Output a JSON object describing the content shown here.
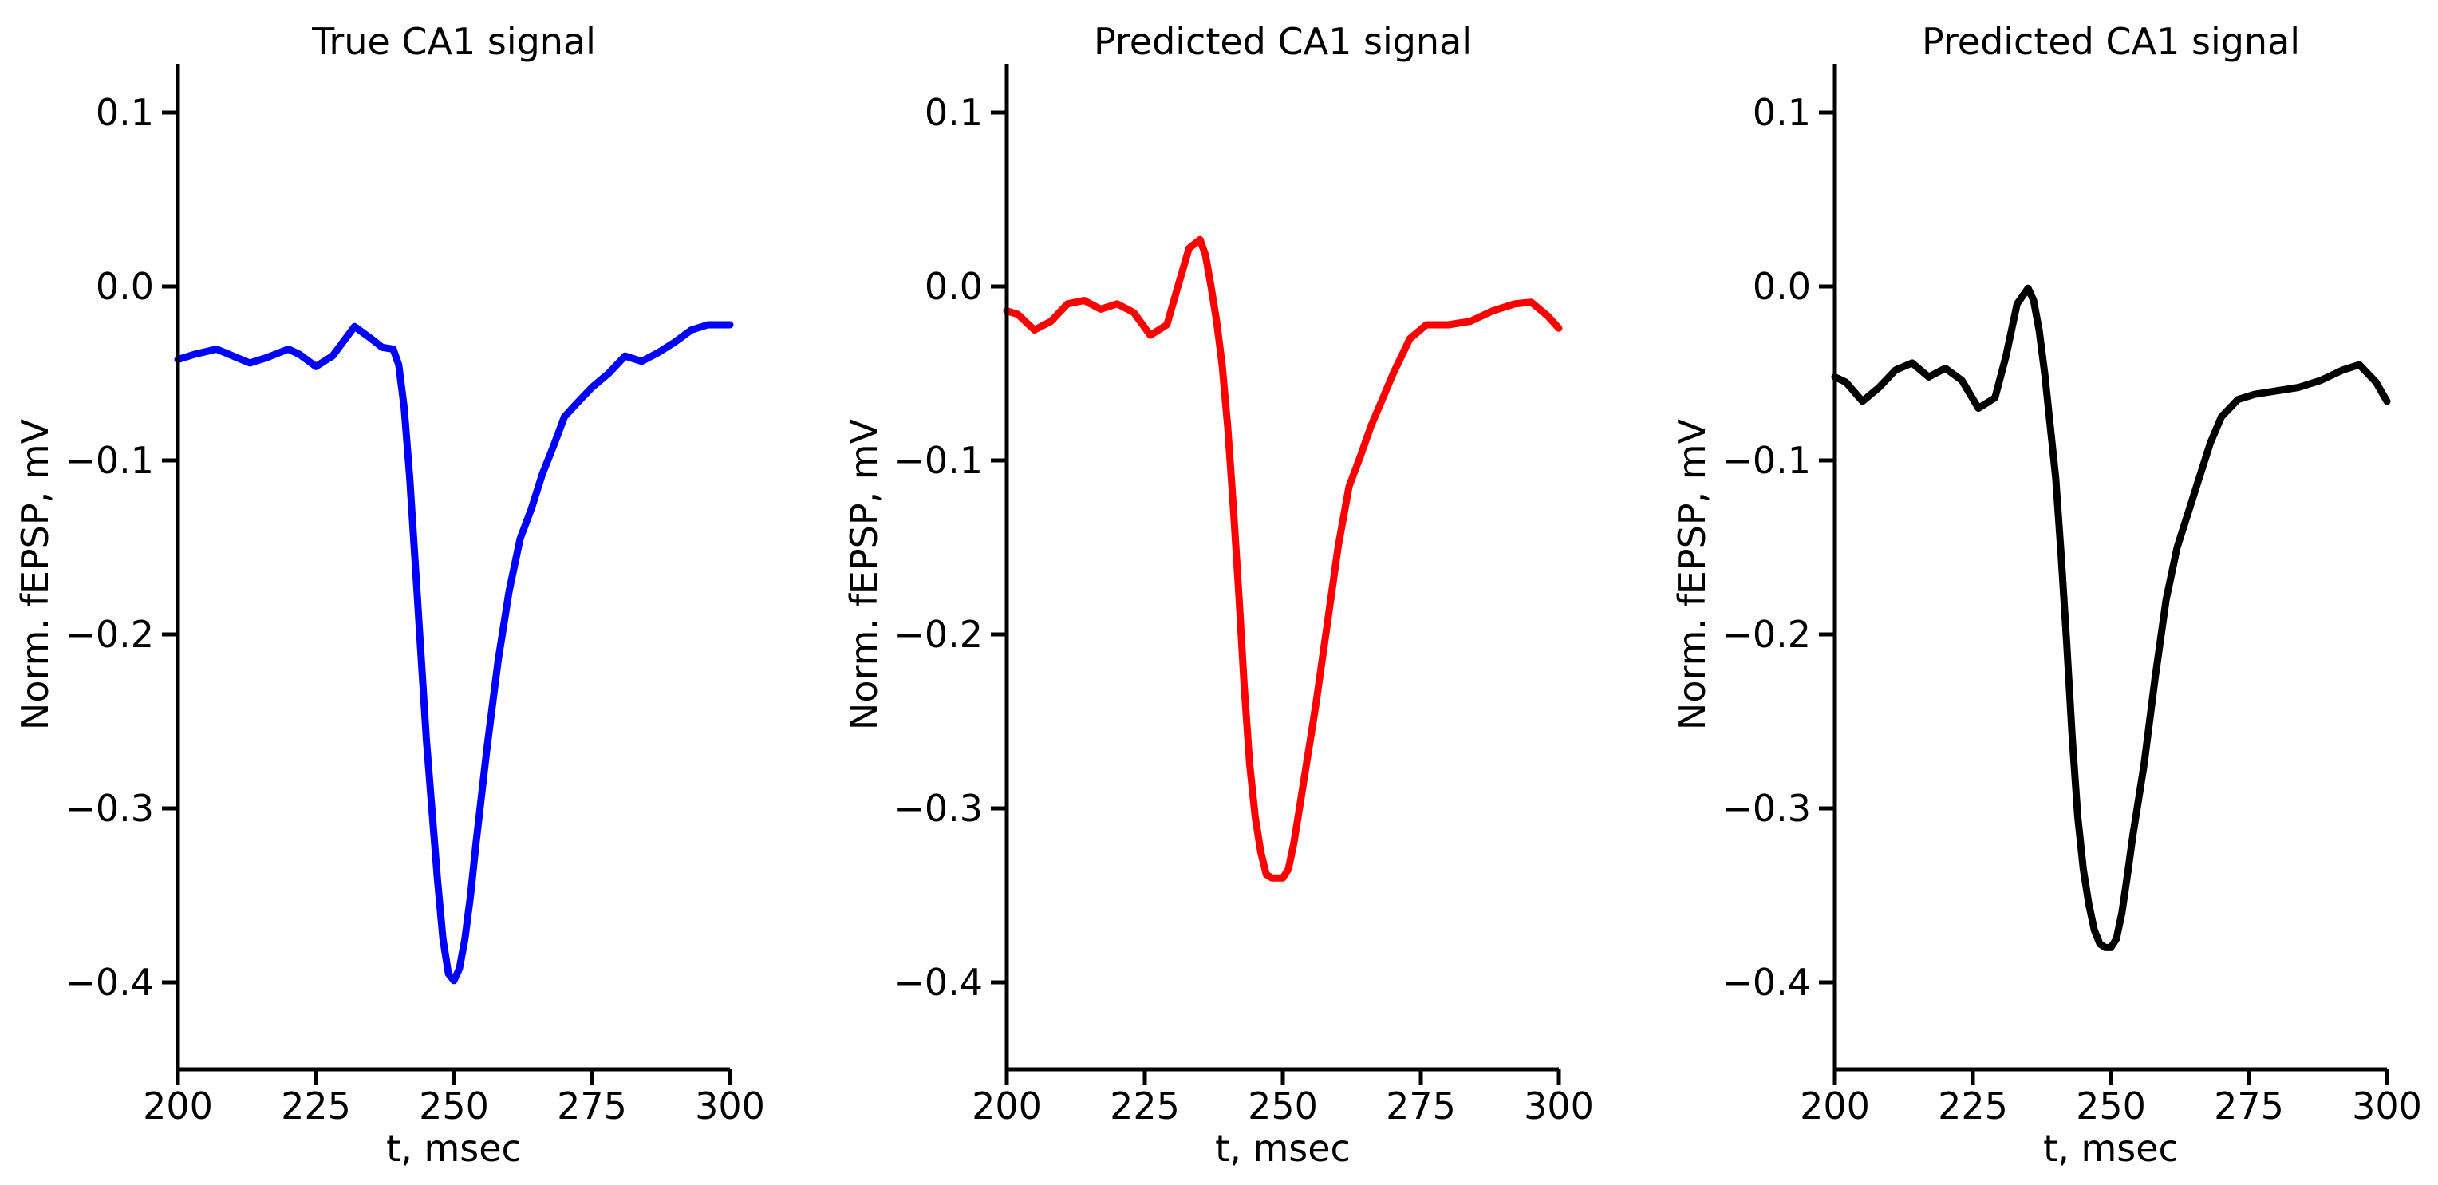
{
  "chart_data": [
    {
      "type": "line",
      "title": "True CA1 signal",
      "xlabel": "t, msec",
      "ylabel": "Norm. fEPSP, mV",
      "xlim": [
        200,
        300
      ],
      "ylim": [
        -0.45,
        0.128
      ],
      "xticks": [
        200,
        225,
        250,
        275,
        300
      ],
      "xtick_labels": [
        "200",
        "225",
        "250",
        "275",
        "300"
      ],
      "yticks": [
        0.1,
        0.0,
        -0.1,
        -0.2,
        -0.3,
        -0.4
      ],
      "ytick_labels": [
        "0.1",
        "0.0",
        "−0.1",
        "−0.2",
        "−0.3",
        "−0.4"
      ],
      "grid": false,
      "color": "#0000ff",
      "series": [
        {
          "x": [
            200,
            203,
            207,
            210,
            213,
            216,
            220,
            222,
            225,
            228,
            232,
            235,
            237,
            239,
            240,
            241,
            242,
            243,
            244,
            245,
            246,
            247,
            248,
            249,
            250,
            251,
            252,
            253,
            254,
            256,
            258,
            260,
            262,
            264,
            266,
            268,
            270,
            272,
            275,
            278,
            281,
            284,
            287,
            290,
            293,
            296,
            300
          ],
          "y": [
            -0.042,
            -0.039,
            -0.036,
            -0.04,
            -0.044,
            -0.041,
            -0.036,
            -0.039,
            -0.046,
            -0.04,
            -0.023,
            -0.03,
            -0.035,
            -0.036,
            -0.045,
            -0.07,
            -0.11,
            -0.16,
            -0.21,
            -0.26,
            -0.3,
            -0.34,
            -0.375,
            -0.395,
            -0.399,
            -0.392,
            -0.375,
            -0.35,
            -0.32,
            -0.265,
            -0.215,
            -0.175,
            -0.145,
            -0.128,
            -0.108,
            -0.092,
            -0.075,
            -0.068,
            -0.058,
            -0.05,
            -0.04,
            -0.043,
            -0.038,
            -0.032,
            -0.025,
            -0.022,
            -0.022
          ]
        }
      ]
    },
    {
      "type": "line",
      "title": "Predicted CA1 signal",
      "xlabel": "t, msec",
      "ylabel": "Norm. fEPSP, mV",
      "xlim": [
        200,
        300
      ],
      "ylim": [
        -0.45,
        0.128
      ],
      "xticks": [
        200,
        225,
        250,
        275,
        300
      ],
      "xtick_labels": [
        "200",
        "225",
        "250",
        "275",
        "300"
      ],
      "yticks": [
        0.1,
        0.0,
        -0.1,
        -0.2,
        -0.3,
        -0.4
      ],
      "ytick_labels": [
        "0.1",
        "0.0",
        "−0.1",
        "−0.2",
        "−0.3",
        "−0.4"
      ],
      "grid": false,
      "color": "#ff0000",
      "series": [
        {
          "x": [
            200,
            202,
            205,
            208,
            211,
            214,
            217,
            220,
            223,
            226,
            229,
            231,
            233,
            235,
            236,
            237,
            238,
            239,
            240,
            241,
            242,
            243,
            244,
            245,
            246,
            247,
            248,
            249,
            250,
            251,
            252,
            253,
            254,
            256,
            258,
            260,
            262,
            264,
            266,
            268,
            270,
            273,
            276,
            280,
            284,
            288,
            292,
            295,
            298,
            300
          ],
          "y": [
            -0.014,
            -0.016,
            -0.025,
            -0.02,
            -0.01,
            -0.008,
            -0.013,
            -0.01,
            -0.015,
            -0.028,
            -0.022,
            0.0,
            0.022,
            0.027,
            0.018,
            0.0,
            -0.02,
            -0.045,
            -0.08,
            -0.125,
            -0.175,
            -0.23,
            -0.275,
            -0.305,
            -0.325,
            -0.338,
            -0.34,
            -0.34,
            -0.34,
            -0.335,
            -0.32,
            -0.3,
            -0.28,
            -0.24,
            -0.195,
            -0.15,
            -0.115,
            -0.098,
            -0.08,
            -0.065,
            -0.05,
            -0.03,
            -0.022,
            -0.022,
            -0.02,
            -0.014,
            -0.01,
            -0.009,
            -0.017,
            -0.024
          ]
        }
      ]
    },
    {
      "type": "line",
      "title": "Predicted CA1 signal",
      "xlabel": "t, msec",
      "ylabel": "Norm. fEPSP, mV",
      "xlim": [
        200,
        300
      ],
      "ylim": [
        -0.45,
        0.128
      ],
      "xticks": [
        200,
        225,
        250,
        275,
        300
      ],
      "xtick_labels": [
        "200",
        "225",
        "250",
        "275",
        "300"
      ],
      "yticks": [
        0.1,
        0.0,
        -0.1,
        -0.2,
        -0.3,
        -0.4
      ],
      "ytick_labels": [
        "0.1",
        "0.0",
        "−0.1",
        "−0.2",
        "−0.3",
        "−0.4"
      ],
      "grid": false,
      "color": "#000000",
      "series": [
        {
          "x": [
            200,
            202,
            205,
            208,
            211,
            214,
            217,
            220,
            223,
            226,
            229,
            231,
            233,
            235,
            236,
            237,
            238,
            239,
            240,
            241,
            242,
            243,
            244,
            245,
            246,
            247,
            248,
            249,
            250,
            251,
            252,
            253,
            254,
            256,
            258,
            260,
            262,
            264,
            266,
            268,
            270,
            273,
            276,
            280,
            284,
            288,
            292,
            295,
            298,
            300
          ],
          "y": [
            -0.052,
            -0.055,
            -0.066,
            -0.058,
            -0.048,
            -0.044,
            -0.052,
            -0.047,
            -0.054,
            -0.07,
            -0.064,
            -0.04,
            -0.01,
            -0.001,
            -0.008,
            -0.025,
            -0.05,
            -0.08,
            -0.11,
            -0.155,
            -0.205,
            -0.26,
            -0.305,
            -0.335,
            -0.355,
            -0.37,
            -0.378,
            -0.38,
            -0.38,
            -0.375,
            -0.36,
            -0.338,
            -0.315,
            -0.275,
            -0.225,
            -0.18,
            -0.15,
            -0.13,
            -0.11,
            -0.09,
            -0.075,
            -0.065,
            -0.062,
            -0.06,
            -0.058,
            -0.054,
            -0.048,
            -0.045,
            -0.055,
            -0.066
          ]
        }
      ]
    }
  ]
}
